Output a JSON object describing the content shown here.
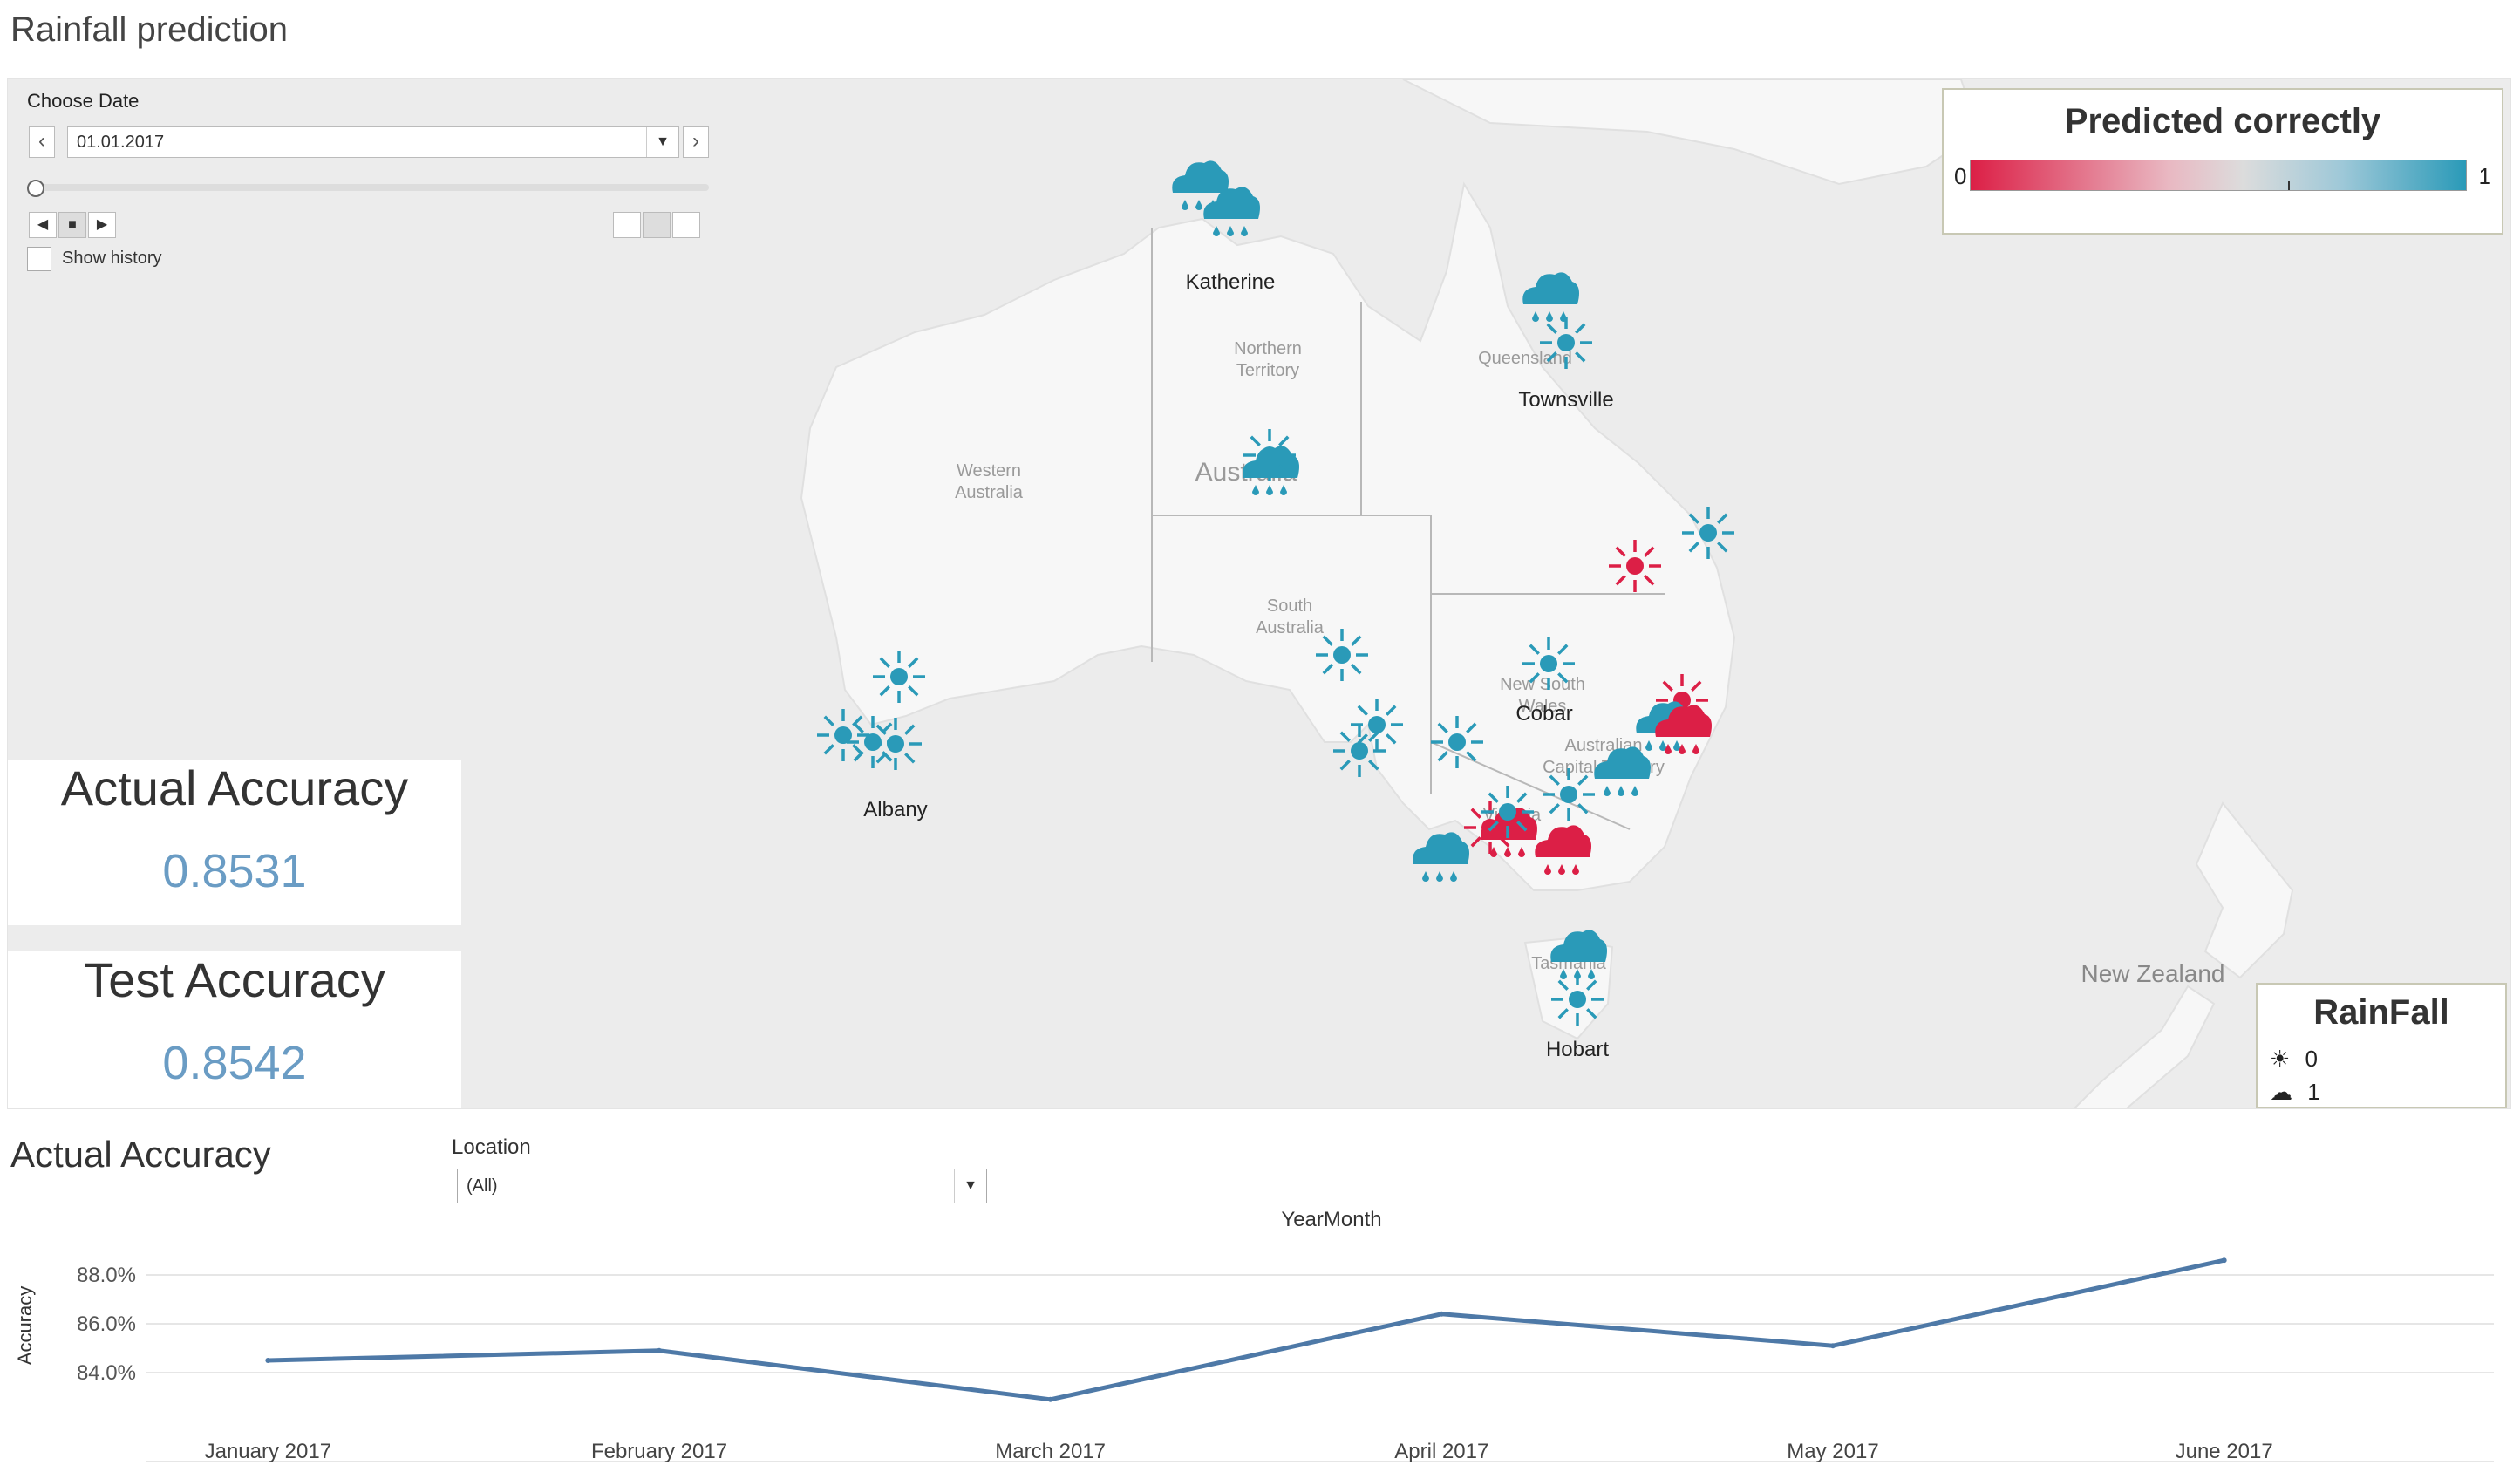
{
  "page": {
    "title": "Rainfall prediction"
  },
  "date_control": {
    "label": "Choose Date",
    "value": "01.01.2017",
    "show_history_label": "Show history"
  },
  "map_labels": {
    "regions": [
      "Western",
      "Australia",
      "Northern",
      "Territory",
      "South",
      "Australia",
      "Queensland",
      "New South",
      "Wales",
      "Victoria",
      "Tasmania",
      "Australia",
      "Australian",
      "Capital Territory"
    ],
    "cities": [
      "Katherine",
      "Townsville",
      "Cobar",
      "Albany",
      "Hobart",
      "New Zealand"
    ]
  },
  "kpis": {
    "actual_title": "Actual Accuracy",
    "actual_value": "0.8531",
    "test_title": "Test Accuracy",
    "test_value": "0.8542"
  },
  "legend_predicted": {
    "title": "Predicted correctly",
    "min_label": "0",
    "max_label": "1",
    "colors": [
      "#dc1f46",
      "#2a9ab8"
    ]
  },
  "legend_rainfall": {
    "title": "RainFall",
    "items": [
      {
        "icon": "sun-icon",
        "label": "0"
      },
      {
        "icon": "rain-cloud-icon",
        "label": "1"
      }
    ]
  },
  "markers": [
    {
      "icon": "rain",
      "correct": 1
    },
    {
      "icon": "rain",
      "correct": 1
    },
    {
      "icon": "rain",
      "correct": 1
    },
    {
      "icon": "sun",
      "correct": 1
    },
    {
      "icon": "rain",
      "correct": 1
    },
    {
      "icon": "sun",
      "correct": 1
    },
    {
      "icon": "sun",
      "correct": 0
    },
    {
      "icon": "sun",
      "correct": 1
    },
    {
      "icon": "sun",
      "correct": 1
    },
    {
      "icon": "sun",
      "correct": 0
    },
    {
      "icon": "rain",
      "correct": 1
    },
    {
      "icon": "rain",
      "correct": 0
    },
    {
      "icon": "sun",
      "correct": 1
    },
    {
      "icon": "sun",
      "correct": 1
    },
    {
      "icon": "sun",
      "correct": 1
    },
    {
      "icon": "sun",
      "correct": 1
    },
    {
      "icon": "sun",
      "correct": 1
    },
    {
      "icon": "sun",
      "correct": 1
    },
    {
      "icon": "sun",
      "correct": 1
    },
    {
      "icon": "sun",
      "correct": 1
    },
    {
      "icon": "rain",
      "correct": 1
    },
    {
      "icon": "rain",
      "correct": 0
    },
    {
      "icon": "rain",
      "correct": 0
    },
    {
      "icon": "sun",
      "correct": 0
    },
    {
      "icon": "sun",
      "correct": 1
    },
    {
      "icon": "sun",
      "correct": 1
    },
    {
      "icon": "rain",
      "correct": 1
    },
    {
      "icon": "rain",
      "correct": 1
    },
    {
      "icon": "sun",
      "correct": 1
    }
  ],
  "location_filter": {
    "label": "Location",
    "value": "(All)"
  },
  "chart_data": {
    "type": "line",
    "title": "Actual Accuracy",
    "top_label": "YearMonth",
    "ylabel": "Accuracy",
    "categories": [
      "January 2017",
      "February 2017",
      "March 2017",
      "April 2017",
      "May 2017",
      "June 2017"
    ],
    "series": [
      {
        "values": [
          84.5,
          84.9,
          82.9,
          86.4,
          85.1,
          88.6
        ],
        "color": "#4e79a7"
      }
    ],
    "ylim": [
      82.0,
      89.5
    ],
    "yticks": [
      84.0,
      86.0,
      88.0
    ],
    "ytick_labels": [
      "84.0%",
      "86.0%",
      "88.0%"
    ],
    "grid": true
  }
}
